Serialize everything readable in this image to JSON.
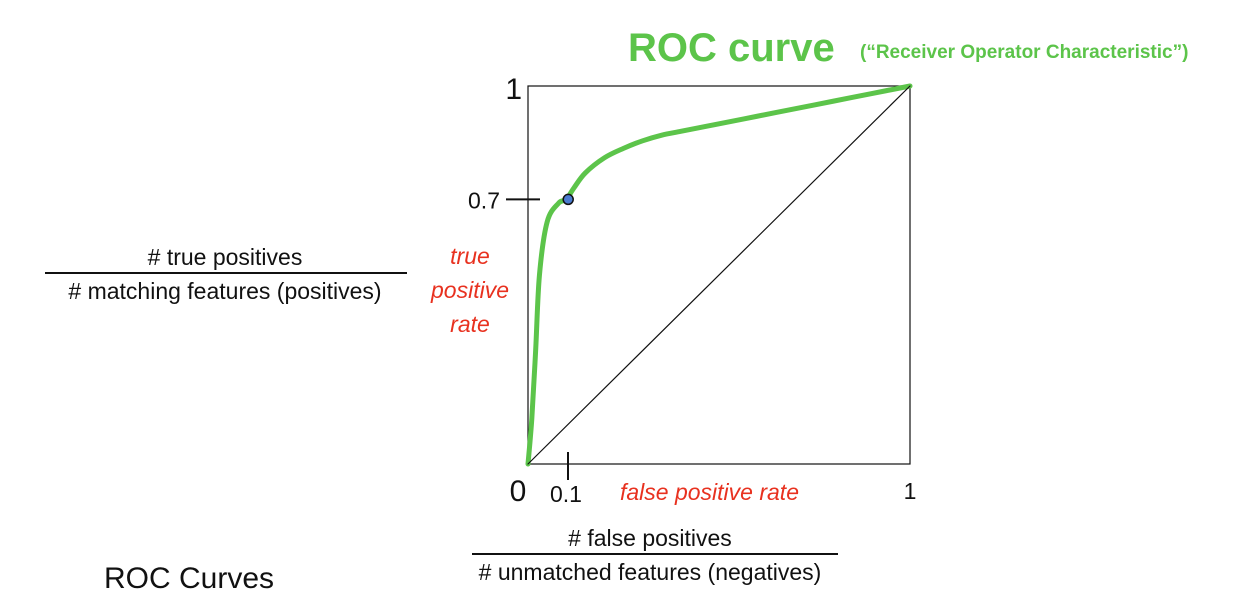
{
  "slide": {
    "footer_title": "ROC Curves"
  },
  "chart_data": {
    "type": "line",
    "title": "ROC curve",
    "subtitle": "(“Receiver Operator Characteristic”)",
    "xlabel": "false positive rate",
    "ylabel_lines": [
      "true",
      "positive",
      "rate"
    ],
    "xlim": [
      0,
      1
    ],
    "ylim": [
      0,
      1
    ],
    "grid": false,
    "x_ticks": [
      {
        "value": 0,
        "label": "0"
      },
      {
        "value": 0.1,
        "label": "0.1"
      },
      {
        "value": 1,
        "label": "1"
      }
    ],
    "y_ticks": [
      {
        "value": 0.7,
        "label": "0.7"
      },
      {
        "value": 1,
        "label": "1"
      }
    ],
    "series": [
      {
        "color": "#5cc44a",
        "x": [
          0,
          0.01,
          0.02,
          0.03,
          0.05,
          0.08,
          0.1,
          0.12,
          0.15,
          0.2,
          0.25,
          0.3,
          0.35,
          0.4,
          0.45,
          0.5,
          0.6,
          0.7,
          0.8,
          0.9,
          1
        ],
        "y": [
          0,
          0.12,
          0.3,
          0.5,
          0.64,
          0.69,
          0.7,
          0.73,
          0.77,
          0.81,
          0.835,
          0.855,
          0.87,
          0.88,
          0.89,
          0.9,
          0.92,
          0.94,
          0.96,
          0.98,
          1
        ]
      },
      {
        "name": "diagonal",
        "color": "#111111",
        "x": [
          0,
          1
        ],
        "y": [
          0,
          1
        ]
      }
    ],
    "highlight_point": {
      "x": 0.1,
      "y": 0.7
    },
    "y_definition": {
      "numerator": "# true positives",
      "denominator": "# matching features (positives)"
    },
    "x_definition": {
      "numerator": "# false positives",
      "denominator": "# unmatched features (negatives)"
    }
  }
}
